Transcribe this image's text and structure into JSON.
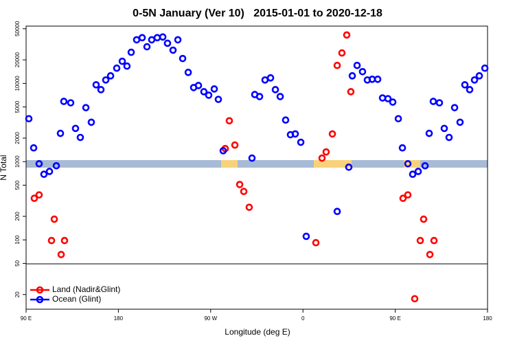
{
  "chart_data": {
    "type": "scatter",
    "title": "0-5N January (Ver 10)   2015-01-01 to 2020-12-18",
    "x_label": "Longitude (deg E)",
    "y_label": "N Total",
    "log_y": true,
    "legend": "lower left",
    "xlim": [
      90,
      540
    ],
    "xticks": [
      {
        "value": 90,
        "label": "90 E"
      },
      180,
      {
        "value": 270,
        "label": "90 W"
      },
      {
        "value": 360,
        "label": "0"
      },
      {
        "value": 450,
        "label": "90 E"
      },
      {
        "value": 540,
        "label": "180"
      }
    ],
    "ylim": [
      13,
      54000
    ],
    "yticks": [
      20,
      50,
      100,
      200,
      500,
      1000,
      2000,
      5000,
      10000,
      20000,
      50000
    ],
    "series": [
      {
        "name": "Land (Nadir&Glint)",
        "color": "#ff0000",
        "x": [
          98.0,
          102.7,
          114.8,
          117.5,
          124.2,
          127.5,
          284.2,
          288.2,
          293.6,
          298.3,
          302.3,
          307.6,
          372.6,
          378.6,
          382.6,
          388.7,
          393.4,
          398.0,
          402.7,
          406.7,
          457.6,
          462.3,
          469.0,
          474.4,
          477.7,
          483.8,
          487.8
        ],
        "values": [
          340,
          376,
          98,
          184,
          65,
          98,
          1470,
          3330,
          1630,
          510,
          416,
          261,
          92,
          1110,
          1330,
          2260,
          16980,
          24500,
          41600,
          7830,
          340,
          376,
          17.7,
          98,
          184,
          65,
          98
        ]
      },
      {
        "name": "Ocean (Glint)",
        "color": "#0000ff",
        "x": [
          92.7,
          97.4,
          102.7,
          107.4,
          112.8,
          119.5,
          123.5,
          126.8,
          133.5,
          138.2,
          142.9,
          148.3,
          153.6,
          158.3,
          163.0,
          167.7,
          172.4,
          178.4,
          183.8,
          188.4,
          192.5,
          197.8,
          203.2,
          207.9,
          212.5,
          217.9,
          223.3,
          227.9,
          233.3,
          238.0,
          242.7,
          248.1,
          253.4,
          258.1,
          263.4,
          268.1,
          273.5,
          277.5,
          282.2,
          310.3,
          313.0,
          317.7,
          323.0,
          328.4,
          333.1,
          337.8,
          343.1,
          347.8,
          352.5,
          357.9,
          363.2,
          393.4,
          404.7,
          408.1,
          412.8,
          418.1,
          422.8,
          427.5,
          432.9,
          437.6,
          442.9,
          447.6,
          453.0,
          457.0,
          462.3,
          467.0,
          472.4,
          479.1,
          483.1,
          487.1,
          493.1,
          497.8,
          502.5,
          507.9,
          513.2,
          517.9,
          522.6,
          527.3,
          532.0,
          537.4
        ],
        "values": [
          3540,
          1500,
          940,
          690,
          750,
          885,
          2300,
          5890,
          5650,
          2660,
          2040,
          4900,
          3190,
          9600,
          8320,
          11070,
          12500,
          15660,
          19190,
          16640,
          25000,
          36100,
          38400,
          29400,
          36100,
          38400,
          39200,
          32600,
          26600,
          36100,
          20800,
          13840,
          8850,
          9400,
          7830,
          7070,
          8490,
          6250,
          1380,
          1110,
          7210,
          6790,
          11070,
          11770,
          8320,
          6790,
          3400,
          2210,
          2260,
          1770,
          111,
          231,
          850,
          12500,
          16980,
          14130,
          11070,
          11300,
          11300,
          6520,
          6380,
          5770,
          3540,
          1500,
          940,
          690,
          750,
          885,
          2300,
          5890,
          5650,
          2660,
          2040,
          4900,
          3190,
          9600,
          8320,
          11070,
          12500,
          15660
        ]
      }
    ]
  }
}
